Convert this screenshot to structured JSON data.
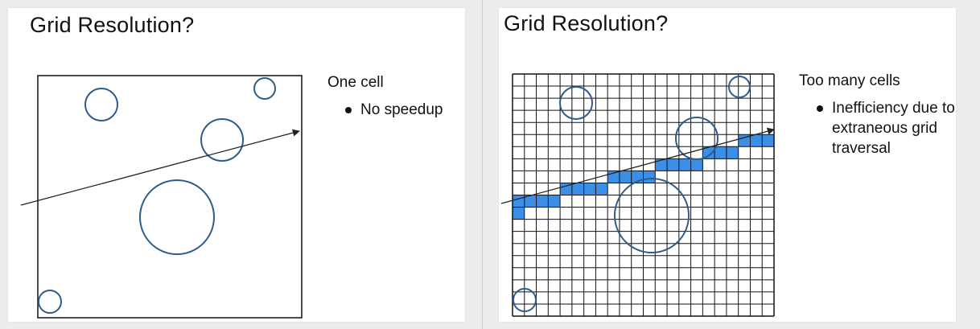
{
  "left_slide": {
    "title": "Grid Resolution?",
    "caption_head": "One cell",
    "bullet": "No speedup"
  },
  "right_slide": {
    "title": "Grid Resolution?",
    "caption_head": "Too many cells",
    "bullet": "Inefficiency due to extraneous grid traversal"
  },
  "colors": {
    "circle": "#2f5b8a",
    "traversed_cell": "#3b8fe6",
    "grid_line": "#111111",
    "ray": "#222222"
  },
  "grid": {
    "rows": 20,
    "cols": 22
  }
}
